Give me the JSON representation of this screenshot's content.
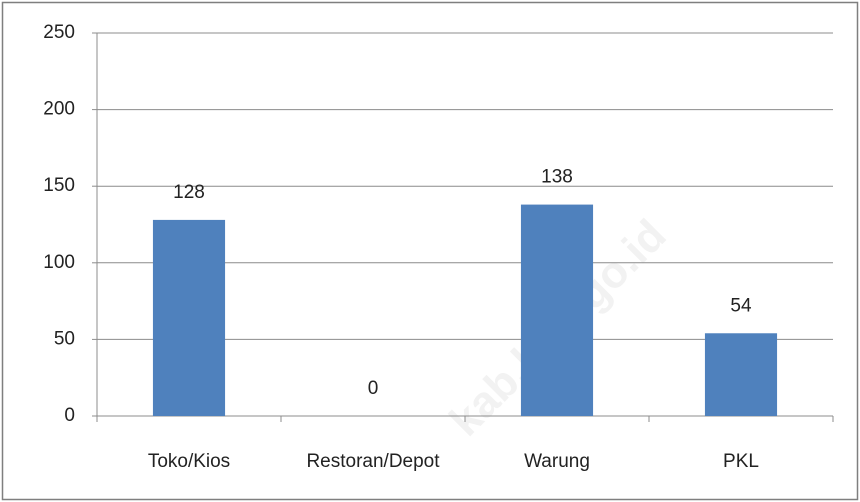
{
  "chart_data": {
    "type": "bar",
    "categories": [
      "Toko/Kios",
      "Restoran/Depot",
      "Warung",
      "PKL"
    ],
    "values": [
      128,
      0,
      138,
      54
    ],
    "color": "#4f81bd",
    "ylim": [
      0,
      250
    ],
    "yticks": [
      0,
      50,
      100,
      150,
      200,
      250
    ],
    "grid": true,
    "watermark": "kab.bps.go.id"
  }
}
